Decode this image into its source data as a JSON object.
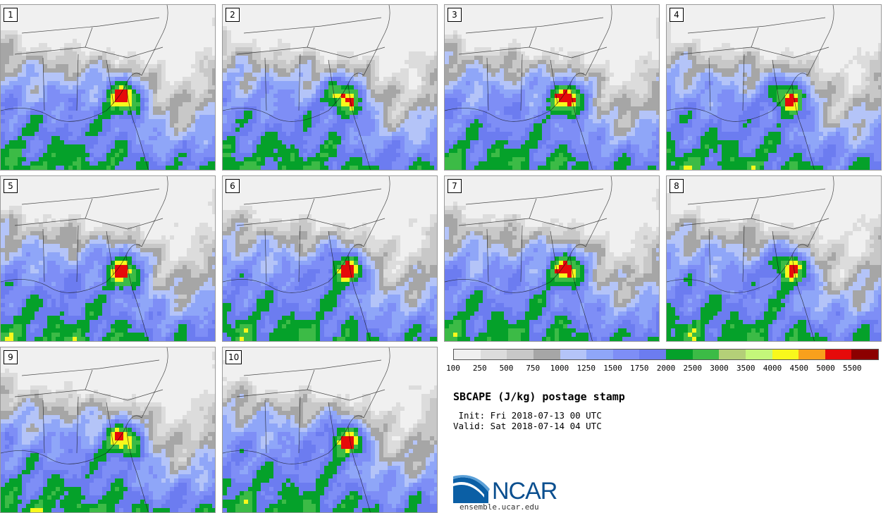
{
  "panels": [
    {
      "label": "1",
      "seed": 11
    },
    {
      "label": "2",
      "seed": 23
    },
    {
      "label": "3",
      "seed": 37
    },
    {
      "label": "4",
      "seed": 41
    },
    {
      "label": "5",
      "seed": 53
    },
    {
      "label": "6",
      "seed": 67
    },
    {
      "label": "7",
      "seed": 71
    },
    {
      "label": "8",
      "seed": 83
    },
    {
      "label": "9",
      "seed": 97
    },
    {
      "label": "10",
      "seed": 101
    }
  ],
  "colorbar": {
    "ticks": [
      "100",
      "250",
      "500",
      "750",
      "1000",
      "1250",
      "1500",
      "1750",
      "2000",
      "2500",
      "3000",
      "3500",
      "4000",
      "4500",
      "5000",
      "5500"
    ],
    "colors": [
      "#f0f0f0",
      "#dcdcdc",
      "#c8c8c8",
      "#a6a6a6",
      "#b4c4f8",
      "#8fa6f8",
      "#7e8ef6",
      "#6c7cf0",
      "#05a12a",
      "#3cbb46",
      "#b4cf78",
      "#c4f77a",
      "#f8f81c",
      "#f8a01c",
      "#e60a0a",
      "#8c0000"
    ]
  },
  "title": "SBCAPE (J/kg) postage stamp",
  "init": " Init: Fri 2018-07-13 00 UTC",
  "valid": "Valid: Sat 2018-07-14 04 UTC",
  "logo": {
    "word": "NCAR",
    "url": "ensemble.ucar.edu",
    "colors": [
      "#0b5fa5",
      "#5aa0d8"
    ]
  }
}
